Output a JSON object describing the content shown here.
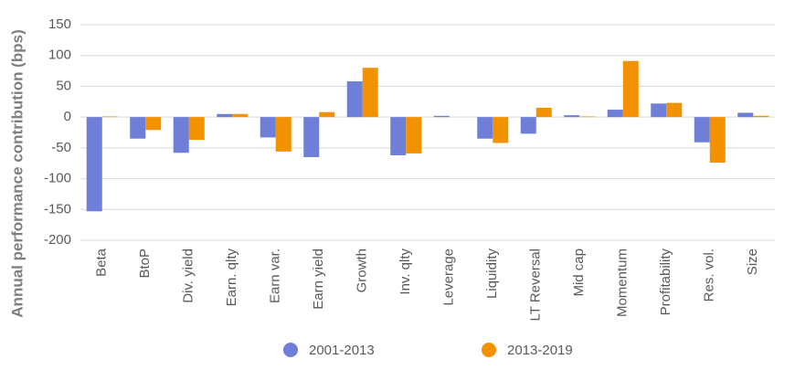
{
  "chart_data": {
    "type": "bar",
    "y_label": "Annual performance contribution (bps)",
    "categories": [
      "Beta",
      "BtoP",
      "Div. yield",
      "Earn. qlty",
      "Earn var.",
      "Earn yield",
      "Growth",
      "Inv. qlty",
      "Leverage",
      "Liquidity",
      "LT Reversal",
      "Mid cap",
      "Momentum",
      "Profitability",
      "Res. vol.",
      "Size"
    ],
    "series": [
      {
        "name": "2001-2013",
        "color": "#6f7fd8",
        "values": [
          -153,
          -35,
          -58,
          5,
          -33,
          -65,
          58,
          -62,
          2,
          -35,
          -27,
          3,
          12,
          22,
          -41,
          7
        ]
      },
      {
        "name": "2013-2019",
        "color": "#f39200",
        "values": [
          1,
          -21,
          -37,
          5,
          -56,
          8,
          80,
          -59,
          0,
          -42,
          15,
          1,
          91,
          23,
          -74,
          2
        ]
      }
    ],
    "ylim": [
      -200,
      150
    ],
    "yticks": [
      -200,
      -150,
      -100,
      -50,
      0,
      50,
      100,
      150
    ],
    "grid": true,
    "legend": "bottom"
  }
}
